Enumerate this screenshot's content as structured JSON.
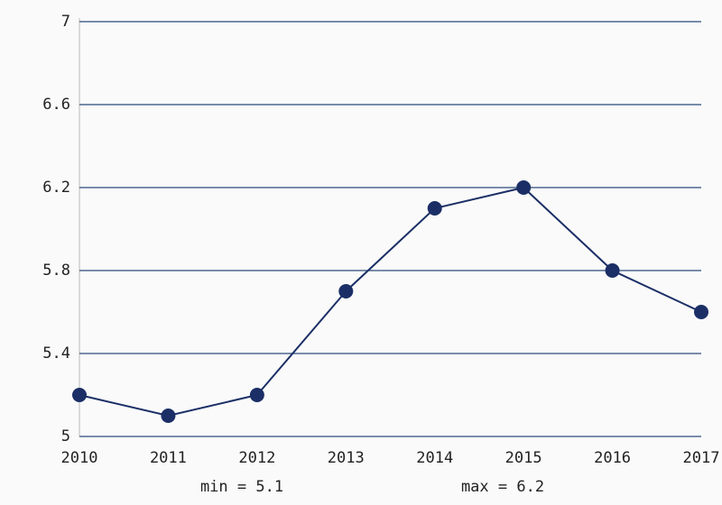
{
  "chart_data": {
    "type": "line",
    "categories": [
      "2010",
      "2011",
      "2012",
      "2013",
      "2014",
      "2015",
      "2016",
      "2017"
    ],
    "series": [
      {
        "color": "#1b2f66",
        "values": [
          5.2,
          5.1,
          5.2,
          5.7,
          6.1,
          6.2,
          5.8,
          5.6
        ]
      }
    ],
    "ylim": [
      5,
      7
    ],
    "yticks": [
      5,
      5.4,
      5.8,
      6.2,
      6.6,
      7
    ],
    "grid": true,
    "grid_color": "#2a4a7a",
    "annotations": [
      "min = 5.1",
      "max = 6.2"
    ]
  }
}
